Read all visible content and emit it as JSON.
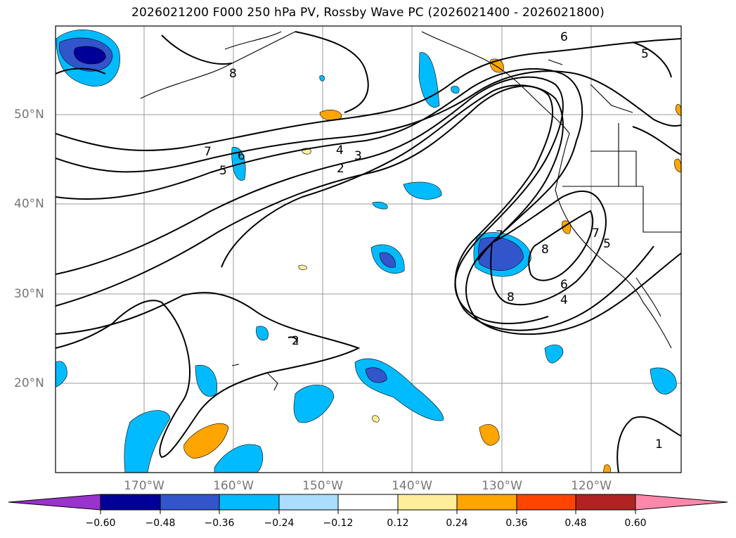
{
  "title": "2026021200 F000 250 hPa PV, Rossby Wave PC (2026021400 - 2026021800)",
  "lat_labels": [
    "50°N",
    "40°N",
    "30°N",
    "20°N"
  ],
  "lon_labels": [
    "170°W",
    "160°W",
    "150°W",
    "140°W",
    "130°W",
    "120°W"
  ],
  "contour_labels": [
    "6",
    "5",
    "8",
    "7",
    "6",
    "5",
    "4",
    "3",
    "2",
    "8",
    "7",
    "5",
    "6",
    "4",
    "8",
    "2",
    "1",
    "7"
  ],
  "colorbar": {
    "ticks": [
      "−0.60",
      "−0.48",
      "−0.36",
      "−0.24",
      "−0.12",
      "0.12",
      "0.24",
      "0.36",
      "0.48",
      "0.60"
    ],
    "colors": [
      "#9933cc",
      "#000099",
      "#3355cc",
      "#00bbff",
      "#aaddff",
      "#ffffff",
      "#ffee99",
      "#ffa500",
      "#ff4400",
      "#b22222",
      "#ff88aa"
    ]
  }
}
